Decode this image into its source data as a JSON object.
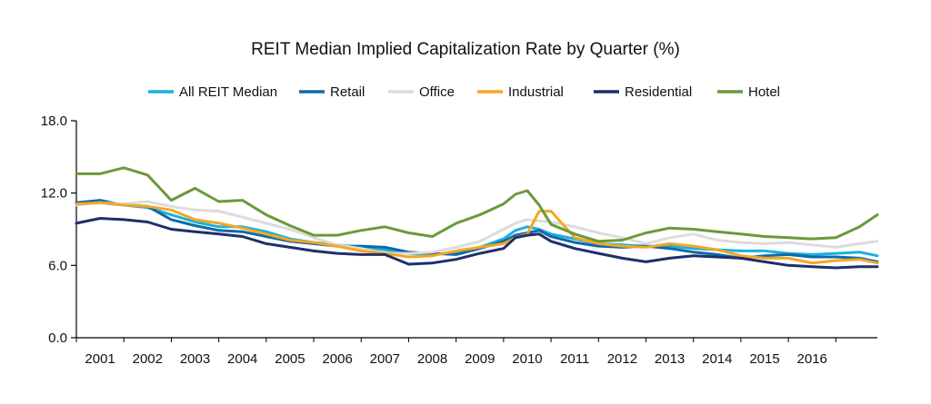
{
  "chart_data": {
    "type": "line",
    "title": "REIT Median Implied Capitalization Rate by Quarter (%)",
    "xlabel": "",
    "ylabel": "",
    "ylim": [
      0,
      18
    ],
    "yticks": [
      "0.0",
      "6.0",
      "12.0",
      "18.0"
    ],
    "ytick_values": [
      0,
      6,
      12,
      18
    ],
    "xlim": [
      2000,
      2016.875
    ],
    "xticks": [
      "2001",
      "2002",
      "2003",
      "2004",
      "2005",
      "2006",
      "2007",
      "2008",
      "2009",
      "2010",
      "2011",
      "2012",
      "2013",
      "2014",
      "2015",
      "2016"
    ],
    "xtick_values": [
      2000.5,
      2001.5,
      2002.5,
      2003.5,
      2004.5,
      2005.5,
      2006.5,
      2007.5,
      2008.5,
      2009.5,
      2010.5,
      2011.5,
      2012.5,
      2013.5,
      2014.5,
      2015.5
    ],
    "grid": false,
    "legend_position": "top",
    "series": [
      {
        "name": "All REIT Median",
        "color": "#1ab0e0",
        "x": [
          2000,
          2000.5,
          2001,
          2001.5,
          2002,
          2002.5,
          2003,
          2003.5,
          2004,
          2004.5,
          2005,
          2005.5,
          2006,
          2006.5,
          2007,
          2007.5,
          2008,
          2008.5,
          2009,
          2009.25,
          2009.5,
          2009.75,
          2010,
          2010.5,
          2011,
          2011.5,
          2012,
          2012.5,
          2013,
          2013.5,
          2014,
          2014.5,
          2015,
          2015.5,
          2016,
          2016.5,
          2016.875
        ],
        "values": [
          11.1,
          11.2,
          11.0,
          10.8,
          10.2,
          9.6,
          9.2,
          9.2,
          8.8,
          8.2,
          7.9,
          7.7,
          7.5,
          7.3,
          7.0,
          6.9,
          7.1,
          7.5,
          8.2,
          8.9,
          9.2,
          9.0,
          8.6,
          8.2,
          7.8,
          7.7,
          7.6,
          7.6,
          7.4,
          7.3,
          7.2,
          7.2,
          7.0,
          6.9,
          7.0,
          7.1,
          6.8
        ]
      },
      {
        "name": "Retail",
        "color": "#0e6aa6",
        "x": [
          2000,
          2000.5,
          2001,
          2001.5,
          2002,
          2002.5,
          2003,
          2003.5,
          2004,
          2004.5,
          2005,
          2005.5,
          2006,
          2006.5,
          2007,
          2007.5,
          2008,
          2008.5,
          2009,
          2009.25,
          2009.5,
          2009.75,
          2010,
          2010.5,
          2011,
          2011.5,
          2012,
          2012.5,
          2013,
          2013.5,
          2014,
          2014.5,
          2015,
          2015.5,
          2016,
          2016.5,
          2016.875
        ],
        "values": [
          11.2,
          11.4,
          11.0,
          10.9,
          9.8,
          9.3,
          8.9,
          8.8,
          8.4,
          8.0,
          7.8,
          7.6,
          7.6,
          7.5,
          7.1,
          7.0,
          6.9,
          7.4,
          8.0,
          8.5,
          8.7,
          8.9,
          8.4,
          7.9,
          7.6,
          7.5,
          7.6,
          7.4,
          7.1,
          6.9,
          6.6,
          6.8,
          6.9,
          6.7,
          6.7,
          6.6,
          6.3
        ]
      },
      {
        "name": "Office",
        "color": "#dcdcdc",
        "x": [
          2000,
          2000.5,
          2001,
          2001.5,
          2002,
          2002.5,
          2003,
          2003.5,
          2004,
          2004.5,
          2005,
          2005.5,
          2006,
          2006.5,
          2007,
          2007.5,
          2008,
          2008.5,
          2009,
          2009.25,
          2009.5,
          2009.75,
          2010,
          2010.5,
          2011,
          2011.5,
          2012,
          2012.5,
          2013,
          2013.5,
          2014,
          2014.5,
          2015,
          2015.5,
          2016,
          2016.5,
          2016.875
        ],
        "values": [
          11.0,
          11.2,
          11.1,
          11.3,
          10.9,
          10.6,
          10.5,
          10.0,
          9.5,
          9.0,
          8.3,
          7.7,
          7.4,
          7.0,
          7.0,
          7.1,
          7.5,
          8.0,
          9.0,
          9.5,
          9.8,
          9.7,
          9.6,
          9.2,
          8.7,
          8.3,
          7.8,
          8.3,
          8.6,
          8.1,
          7.9,
          7.8,
          7.9,
          7.7,
          7.5,
          7.8,
          8.0
        ]
      },
      {
        "name": "Industrial",
        "color": "#f5a623",
        "x": [
          2000,
          2000.5,
          2001,
          2001.5,
          2002,
          2002.5,
          2003,
          2003.5,
          2004,
          2004.5,
          2005,
          2005.5,
          2006,
          2006.5,
          2007,
          2007.5,
          2008,
          2008.5,
          2009,
          2009.25,
          2009.5,
          2009.75,
          2010,
          2010.5,
          2011,
          2011.5,
          2012,
          2012.5,
          2013,
          2013.5,
          2014,
          2014.5,
          2015,
          2015.5,
          2016,
          2016.5,
          2016.875
        ],
        "values": [
          11.1,
          11.2,
          11.0,
          10.9,
          10.6,
          9.8,
          9.5,
          9.1,
          8.6,
          8.1,
          7.9,
          7.6,
          7.2,
          7.0,
          6.7,
          6.8,
          7.2,
          7.5,
          7.8,
          8.3,
          8.6,
          10.5,
          10.5,
          8.3,
          7.8,
          7.6,
          7.5,
          7.8,
          7.6,
          7.3,
          6.8,
          6.6,
          6.6,
          6.2,
          6.4,
          6.5,
          6.2
        ]
      },
      {
        "name": "Residential",
        "color": "#1f2f6b",
        "x": [
          2000,
          2000.5,
          2001,
          2001.5,
          2002,
          2002.5,
          2003,
          2003.5,
          2004,
          2004.5,
          2005,
          2005.5,
          2006,
          2006.5,
          2007,
          2007.5,
          2008,
          2008.5,
          2009,
          2009.25,
          2009.5,
          2009.75,
          2010,
          2010.5,
          2011,
          2011.5,
          2012,
          2012.5,
          2013,
          2013.5,
          2014,
          2014.5,
          2015,
          2015.5,
          2016,
          2016.5,
          2016.875
        ],
        "values": [
          9.5,
          9.9,
          9.8,
          9.6,
          9.0,
          8.8,
          8.6,
          8.4,
          7.8,
          7.5,
          7.2,
          7.0,
          6.9,
          6.9,
          6.1,
          6.2,
          6.5,
          7.0,
          7.4,
          8.3,
          8.5,
          8.6,
          8.0,
          7.4,
          7.0,
          6.6,
          6.3,
          6.6,
          6.8,
          6.7,
          6.6,
          6.3,
          6.0,
          5.9,
          5.8,
          5.9,
          5.9
        ]
      },
      {
        "name": "Hotel",
        "color": "#6a9a3a",
        "x": [
          2000,
          2000.5,
          2001,
          2001.5,
          2002,
          2002.5,
          2003,
          2003.5,
          2004,
          2004.5,
          2005,
          2005.5,
          2006,
          2006.5,
          2007,
          2007.5,
          2008,
          2008.5,
          2009,
          2009.25,
          2009.5,
          2009.75,
          2010,
          2010.5,
          2011,
          2011.5,
          2012,
          2012.5,
          2013,
          2013.5,
          2014,
          2014.5,
          2015,
          2015.5,
          2016,
          2016.5,
          2016.875
        ],
        "values": [
          13.6,
          13.6,
          14.1,
          13.5,
          11.4,
          12.4,
          11.3,
          11.4,
          10.2,
          9.3,
          8.5,
          8.5,
          8.9,
          9.2,
          8.7,
          8.4,
          9.5,
          10.2,
          11.1,
          11.9,
          12.2,
          11.0,
          9.4,
          8.6,
          8.0,
          8.1,
          8.7,
          9.1,
          9.0,
          8.8,
          8.6,
          8.4,
          8.3,
          8.2,
          8.3,
          9.2,
          10.2
        ]
      }
    ]
  }
}
